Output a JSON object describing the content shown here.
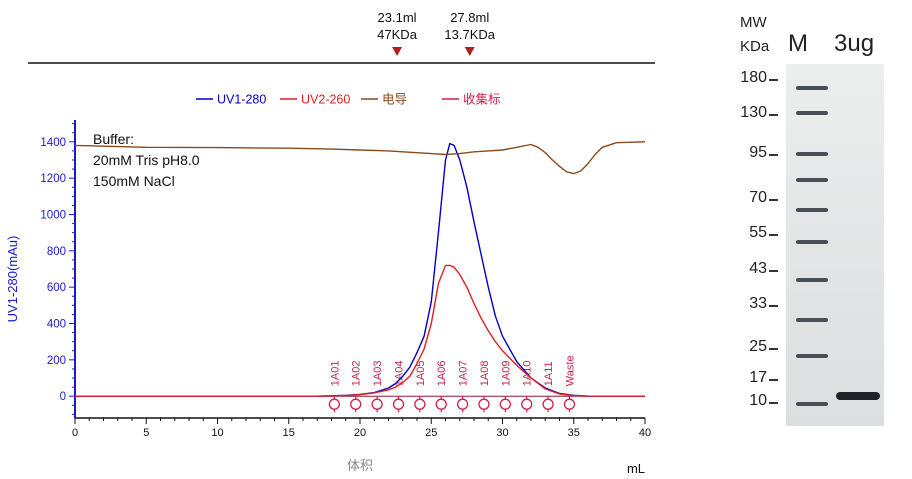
{
  "chart_data": {
    "type": "line",
    "xlabel": "体积",
    "x_unit": "mL",
    "ylabel": "UV1-280(mAu)",
    "xlim": [
      0,
      40
    ],
    "ylim": [
      -120,
      1520
    ],
    "x_ticks": [
      "0",
      "5",
      "10",
      "15",
      "20",
      "25",
      "30",
      "35",
      "40"
    ],
    "y_ticks": [
      "0",
      "200",
      "400",
      "600",
      "800",
      "1000",
      "1200",
      "1400"
    ],
    "legend": {
      "position": "top-center",
      "entries": [
        {
          "label": "UV1-280",
          "color": "#0000c8"
        },
        {
          "label": "UV2-260",
          "color": "#e02020"
        },
        {
          "label": "电导",
          "color": "#8b4a1a"
        },
        {
          "label": "收集标",
          "color": "#d0204a"
        }
      ]
    },
    "annotation": [
      "Buffer:",
      "20mM Tris pH8.0",
      "150mM NaCl"
    ],
    "markers": [
      {
        "volume_label": "23.1ml",
        "mw_label": "47KDa",
        "x": 22.6
      },
      {
        "volume_label": "27.8ml",
        "mw_label": "13.7KDa",
        "x": 27.7
      }
    ],
    "fractions": [
      {
        "label": "1A01",
        "x": 18.2
      },
      {
        "label": "1A02",
        "x": 19.7
      },
      {
        "label": "1A03",
        "x": 21.2
      },
      {
        "label": "1A04",
        "x": 22.7
      },
      {
        "label": "1A05",
        "x": 24.2
      },
      {
        "label": "1A06",
        "x": 25.7
      },
      {
        "label": "1A07",
        "x": 27.2
      },
      {
        "label": "1A08",
        "x": 28.7
      },
      {
        "label": "1A09",
        "x": 30.2
      },
      {
        "label": "1A10",
        "x": 31.7
      },
      {
        "label": "1A11",
        "x": 33.2
      },
      {
        "label": "Waste",
        "x": 34.7
      }
    ],
    "series": [
      {
        "name": "UV1-280",
        "x": [
          0,
          17,
          18,
          19,
          20,
          21,
          22,
          22.5,
          23,
          23.5,
          24,
          24.5,
          25,
          25.5,
          26,
          26.3,
          26.6,
          27,
          27.5,
          28,
          28.5,
          29,
          29.5,
          30,
          31,
          32,
          33,
          34,
          35,
          36,
          37,
          40
        ],
        "y": [
          0,
          0,
          2,
          5,
          10,
          20,
          45,
          70,
          110,
          160,
          240,
          330,
          520,
          900,
          1300,
          1390,
          1380,
          1300,
          1150,
          960,
          780,
          600,
          440,
          330,
          190,
          100,
          45,
          15,
          5,
          0,
          0,
          0
        ]
      },
      {
        "name": "UV2-260",
        "x": [
          0,
          17,
          18,
          19,
          20,
          21,
          22,
          22.5,
          23,
          23.5,
          24,
          24.5,
          25,
          25.5,
          26,
          26.3,
          26.6,
          27,
          27.5,
          28,
          28.5,
          29,
          29.5,
          30,
          31,
          32,
          33,
          34,
          35,
          36,
          37,
          40
        ],
        "y": [
          0,
          0,
          1,
          3,
          8,
          18,
          35,
          50,
          75,
          110,
          180,
          260,
          400,
          620,
          720,
          720,
          710,
          670,
          600,
          510,
          430,
          360,
          300,
          250,
          170,
          100,
          40,
          12,
          3,
          0,
          0,
          0
        ]
      },
      {
        "name": "电导",
        "x": [
          0,
          5,
          10,
          15,
          18,
          20,
          22,
          23,
          24,
          25,
          26,
          27,
          28,
          29,
          30,
          31,
          32,
          32.5,
          33,
          33.5,
          34,
          34.5,
          35,
          35.5,
          36,
          36.5,
          37,
          38,
          40
        ],
        "y": [
          1380,
          1370,
          1368,
          1365,
          1360,
          1355,
          1350,
          1345,
          1340,
          1335,
          1330,
          1335,
          1345,
          1350,
          1355,
          1370,
          1385,
          1370,
          1340,
          1300,
          1265,
          1235,
          1225,
          1240,
          1280,
          1330,
          1370,
          1395,
          1400
        ]
      }
    ]
  },
  "gel": {
    "mw_header": [
      "MW",
      "KDa"
    ],
    "lanes": [
      "M",
      "3ug"
    ],
    "markers": [
      "180",
      "130",
      "95",
      "70",
      "55",
      "43",
      "33",
      "25",
      "17",
      "10"
    ]
  }
}
